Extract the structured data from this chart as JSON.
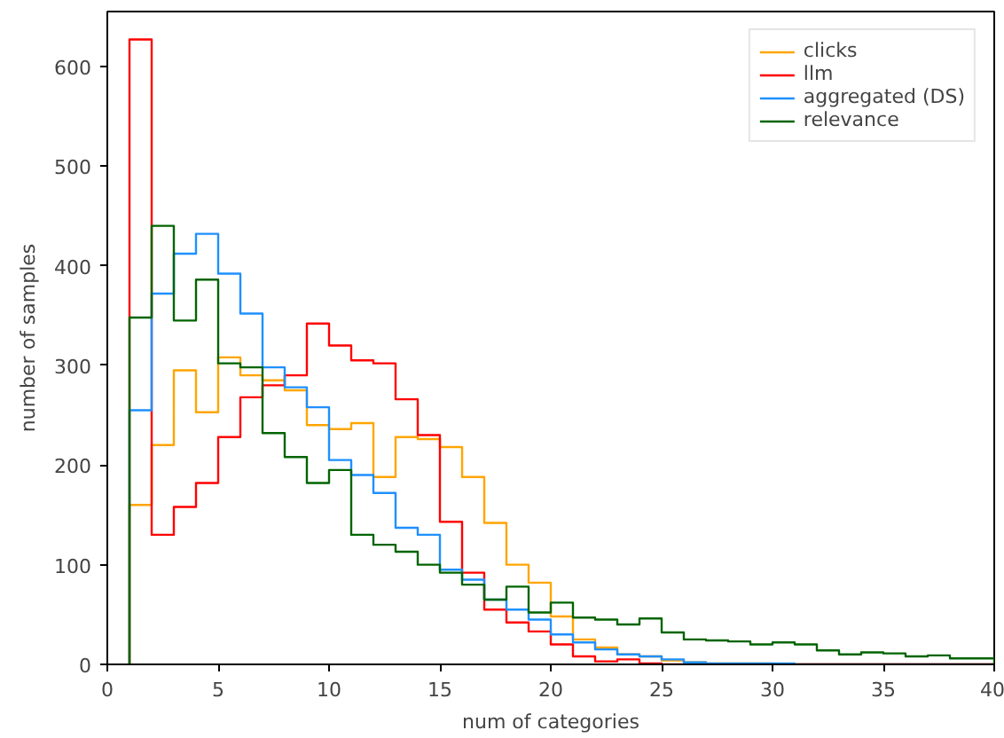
{
  "chart_data": {
    "type": "histogram",
    "xlabel": "num of categories",
    "ylabel": "number of samples",
    "bins": [
      1,
      2,
      3,
      4,
      5,
      6,
      7,
      8,
      9,
      10,
      11,
      12,
      13,
      14,
      15,
      16,
      17,
      18,
      19,
      20,
      21,
      22,
      23,
      24,
      25,
      26,
      27,
      28,
      29,
      30,
      31,
      32,
      33,
      34,
      35,
      36,
      37,
      38,
      39,
      40
    ],
    "series": [
      {
        "name": "clicks",
        "color": "#ffa500",
        "values": [
          160,
          220,
          295,
          253,
          308,
          290,
          285,
          275,
          240,
          236,
          242,
          188,
          228,
          226,
          218,
          188,
          142,
          100,
          82,
          48,
          25,
          17,
          10,
          8,
          4,
          2,
          1,
          1,
          1,
          0,
          0,
          0,
          0,
          0,
          0,
          0,
          0,
          0,
          0
        ]
      },
      {
        "name": "llm",
        "color": "#ff0000",
        "values": [
          627,
          130,
          158,
          182,
          228,
          268,
          280,
          290,
          342,
          320,
          305,
          302,
          266,
          230,
          143,
          92,
          55,
          42,
          33,
          20,
          8,
          3,
          5,
          1,
          0,
          0,
          0,
          0,
          0,
          0,
          0,
          0,
          0,
          0,
          0,
          0,
          0,
          0,
          0
        ]
      },
      {
        "name": "aggregated (DS)",
        "color": "#1e90ff",
        "values": [
          255,
          372,
          412,
          432,
          392,
          352,
          298,
          278,
          258,
          205,
          190,
          172,
          137,
          130,
          95,
          85,
          65,
          55,
          45,
          30,
          22,
          15,
          10,
          8,
          5,
          2,
          1,
          1,
          1,
          1,
          0,
          0,
          0,
          0,
          0,
          0,
          0,
          0,
          0
        ]
      },
      {
        "name": "relevance",
        "color": "#006400",
        "values": [
          348,
          440,
          345,
          386,
          302,
          298,
          232,
          208,
          182,
          195,
          130,
          120,
          113,
          100,
          92,
          80,
          65,
          78,
          52,
          62,
          47,
          45,
          40,
          46,
          32,
          25,
          24,
          23,
          20,
          22,
          20,
          14,
          10,
          12,
          11,
          8,
          9,
          6,
          6
        ]
      }
    ],
    "xlim": [
      0,
      40
    ],
    "xticks": [
      0,
      5,
      10,
      15,
      20,
      25,
      30,
      35,
      40
    ],
    "ylim": [
      0,
      655
    ],
    "yticks": [
      0,
      100,
      200,
      300,
      400,
      500,
      600
    ],
    "legend": "top right",
    "grid": false
  }
}
